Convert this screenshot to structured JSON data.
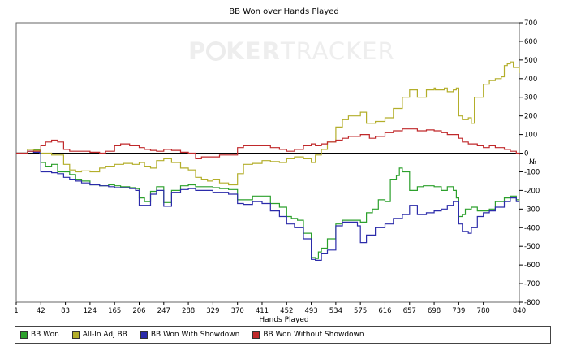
{
  "chart_data": {
    "type": "line",
    "title": "BB Won over Hands Played",
    "xlabel": "Hands Played",
    "ylabel": "",
    "y_unit": "№",
    "xlim": [
      1,
      840
    ],
    "ylim": [
      -800,
      700
    ],
    "x_ticks": [
      "1",
      "42",
      "83",
      "124",
      "165",
      "206",
      "247",
      "288",
      "329",
      "370",
      "411",
      "452",
      "493",
      "534",
      "575",
      "616",
      "657",
      "698",
      "739",
      "780",
      "840"
    ],
    "y_ticks": [
      "700",
      "600",
      "500",
      "400",
      "300",
      "200",
      "100",
      "0",
      "-100",
      "-200",
      "-300",
      "-400",
      "-500",
      "-600",
      "-700",
      "-800"
    ],
    "y_axis_side": "right",
    "zero_line": true,
    "grid": false,
    "legend_position": "bottom",
    "series": [
      {
        "name": "BB Won",
        "color": "#2ca02c",
        "x": [
          1,
          20,
          30,
          40,
          42,
          50,
          55,
          60,
          70,
          80,
          90,
          100,
          110,
          124,
          140,
          155,
          165,
          175,
          190,
          200,
          206,
          215,
          225,
          235,
          247,
          260,
          275,
          288,
          300,
          320,
          329,
          340,
          355,
          370,
          380,
          395,
          411,
          425,
          440,
          452,
          460,
          470,
          480,
          493,
          500,
          505,
          510,
          520,
          534,
          545,
          555,
          575,
          585,
          595,
          605,
          616,
          625,
          635,
          640,
          645,
          657,
          670,
          680,
          698,
          710,
          720,
          730,
          735,
          739,
          745,
          750,
          760,
          770,
          780,
          790,
          800,
          815,
          825,
          835,
          840
        ],
        "y": [
          0,
          20,
          20,
          15,
          -50,
          -70,
          -70,
          -60,
          -100,
          -100,
          -115,
          -140,
          -150,
          -170,
          -175,
          -170,
          -175,
          -180,
          -185,
          -190,
          -240,
          -260,
          -205,
          -180,
          -265,
          -200,
          -175,
          -170,
          -180,
          -180,
          -185,
          -190,
          -195,
          -250,
          -250,
          -230,
          -230,
          -270,
          -290,
          -340,
          -350,
          -360,
          -430,
          -560,
          -565,
          -530,
          -510,
          -460,
          -380,
          -360,
          -360,
          -370,
          -320,
          -300,
          -250,
          -260,
          -140,
          -120,
          -80,
          -100,
          -200,
          -180,
          -175,
          -180,
          -200,
          -180,
          -200,
          -240,
          -340,
          -330,
          -300,
          -290,
          -310,
          -310,
          -300,
          -260,
          -240,
          -230,
          -250,
          -250
        ]
      },
      {
        "name": "All-In Adj BB",
        "color": "#b3ae2a",
        "x": [
          1,
          20,
          30,
          40,
          42,
          50,
          60,
          70,
          80,
          90,
          100,
          110,
          124,
          140,
          150,
          165,
          180,
          195,
          206,
          215,
          225,
          235,
          247,
          260,
          275,
          288,
          300,
          310,
          320,
          329,
          340,
          355,
          370,
          380,
          395,
          411,
          425,
          440,
          452,
          465,
          480,
          493,
          500,
          510,
          520,
          534,
          545,
          555,
          575,
          585,
          600,
          616,
          630,
          645,
          657,
          670,
          685,
          698,
          700,
          715,
          720,
          730,
          735,
          739,
          745,
          755,
          760,
          765,
          780,
          790,
          800,
          810,
          815,
          820,
          825,
          830,
          840
        ],
        "y": [
          0,
          20,
          15,
          10,
          0,
          0,
          -10,
          -10,
          -60,
          -90,
          -100,
          -95,
          -100,
          -80,
          -70,
          -60,
          -55,
          -60,
          -50,
          -70,
          -80,
          -40,
          -30,
          -50,
          -80,
          -90,
          -130,
          -140,
          -150,
          -140,
          -160,
          -170,
          -110,
          -60,
          -55,
          -40,
          -45,
          -50,
          -30,
          -20,
          -30,
          -50,
          -10,
          20,
          60,
          140,
          180,
          200,
          220,
          160,
          170,
          190,
          240,
          300,
          340,
          300,
          340,
          350,
          340,
          350,
          330,
          340,
          350,
          200,
          180,
          190,
          160,
          300,
          370,
          390,
          400,
          410,
          470,
          480,
          490,
          460,
          430
        ]
      },
      {
        "name": "BB Won With Showdown",
        "color": "#2b2baa",
        "x": [
          1,
          20,
          30,
          40,
          42,
          50,
          60,
          70,
          80,
          90,
          100,
          110,
          124,
          140,
          155,
          165,
          175,
          190,
          200,
          206,
          215,
          225,
          235,
          247,
          260,
          275,
          288,
          300,
          320,
          329,
          340,
          355,
          370,
          380,
          395,
          411,
          425,
          440,
          452,
          465,
          480,
          493,
          500,
          510,
          520,
          534,
          545,
          555,
          570,
          575,
          585,
          600,
          616,
          630,
          645,
          657,
          670,
          685,
          698,
          710,
          720,
          730,
          739,
          745,
          755,
          760,
          770,
          780,
          790,
          800,
          815,
          825,
          835,
          840
        ],
        "y": [
          0,
          10,
          5,
          0,
          -100,
          -100,
          -105,
          -110,
          -130,
          -140,
          -150,
          -160,
          -170,
          -175,
          -180,
          -185,
          -185,
          -190,
          -200,
          -280,
          -280,
          -220,
          -200,
          -285,
          -210,
          -195,
          -190,
          -200,
          -200,
          -210,
          -210,
          -220,
          -270,
          -275,
          -260,
          -270,
          -310,
          -340,
          -380,
          -400,
          -460,
          -570,
          -575,
          -540,
          -520,
          -390,
          -370,
          -370,
          -390,
          -480,
          -440,
          -400,
          -380,
          -350,
          -330,
          -280,
          -330,
          -320,
          -310,
          -300,
          -280,
          -260,
          -380,
          -420,
          -430,
          -400,
          -340,
          -320,
          -310,
          -290,
          -260,
          -240,
          -260,
          -260
        ]
      },
      {
        "name": "BB Won Without Showdown",
        "color": "#c0292b",
        "x": [
          1,
          20,
          30,
          42,
          50,
          60,
          70,
          80,
          90,
          100,
          124,
          140,
          150,
          165,
          175,
          190,
          206,
          215,
          225,
          235,
          247,
          260,
          275,
          288,
          300,
          310,
          329,
          340,
          355,
          370,
          380,
          395,
          411,
          425,
          440,
          452,
          465,
          480,
          493,
          500,
          510,
          520,
          534,
          545,
          555,
          575,
          590,
          600,
          616,
          630,
          645,
          657,
          670,
          685,
          698,
          710,
          720,
          739,
          745,
          755,
          770,
          780,
          790,
          800,
          815,
          825,
          835,
          840
        ],
        "y": [
          0,
          10,
          10,
          40,
          60,
          70,
          60,
          20,
          10,
          10,
          5,
          0,
          10,
          40,
          50,
          40,
          30,
          20,
          15,
          10,
          20,
          15,
          5,
          0,
          -30,
          -20,
          -20,
          -10,
          -10,
          30,
          40,
          40,
          40,
          30,
          20,
          10,
          20,
          40,
          50,
          40,
          50,
          60,
          70,
          80,
          90,
          100,
          80,
          90,
          110,
          120,
          130,
          130,
          120,
          125,
          120,
          110,
          100,
          80,
          60,
          50,
          40,
          30,
          40,
          30,
          20,
          10,
          0,
          -10
        ]
      }
    ]
  }
}
